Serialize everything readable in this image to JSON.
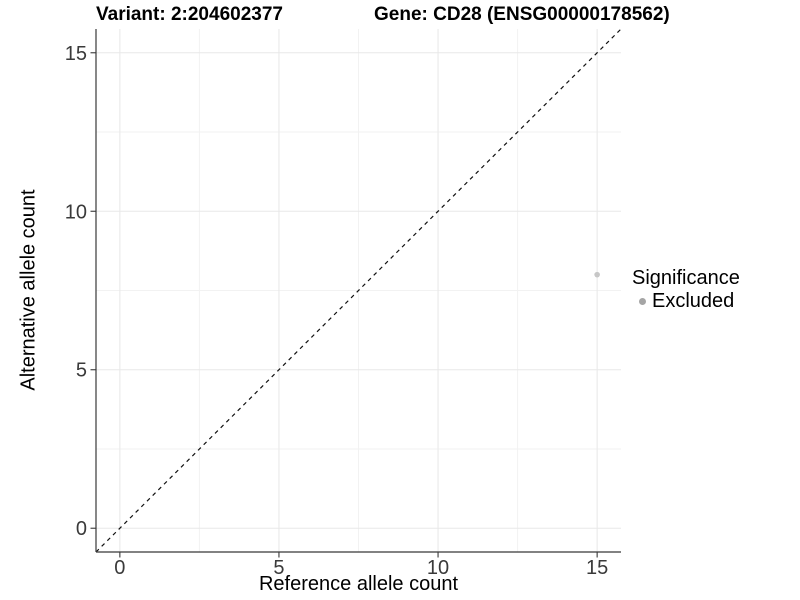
{
  "chart_data": {
    "type": "scatter",
    "title_left": "Variant: 2:204602377",
    "title_right": "Gene: CD28 (ENSG00000178562)",
    "xlabel": "Reference allele count",
    "ylabel": "Alternative allele count",
    "xlim": [
      -0.75,
      15.75
    ],
    "ylim": [
      -0.75,
      15.75
    ],
    "xticks": [
      0,
      5,
      10,
      15
    ],
    "yticks": [
      0,
      5,
      10,
      15
    ],
    "xticks_minor": [
      2.5,
      7.5,
      12.5
    ],
    "yticks_minor": [
      2.5,
      7.5,
      12.5
    ],
    "grid": true,
    "reference_line": {
      "type": "identity",
      "equation": "y = x",
      "style": "dashed",
      "color": "#111111"
    },
    "series": [
      {
        "name": "Excluded",
        "color": "#c7c7c7",
        "points": [
          {
            "x": 15,
            "y": 8
          }
        ]
      }
    ],
    "legend": {
      "title": "Significance",
      "position": "right",
      "entries": [
        {
          "label": "Excluded",
          "color": "#a5a5a5"
        }
      ]
    }
  },
  "colors": {
    "background": "#ffffff",
    "grid_major": "#e8e8e8",
    "grid_minor": "#f2f2f2",
    "axis_line": "#383838",
    "tick_label": "#3a3a3a"
  }
}
